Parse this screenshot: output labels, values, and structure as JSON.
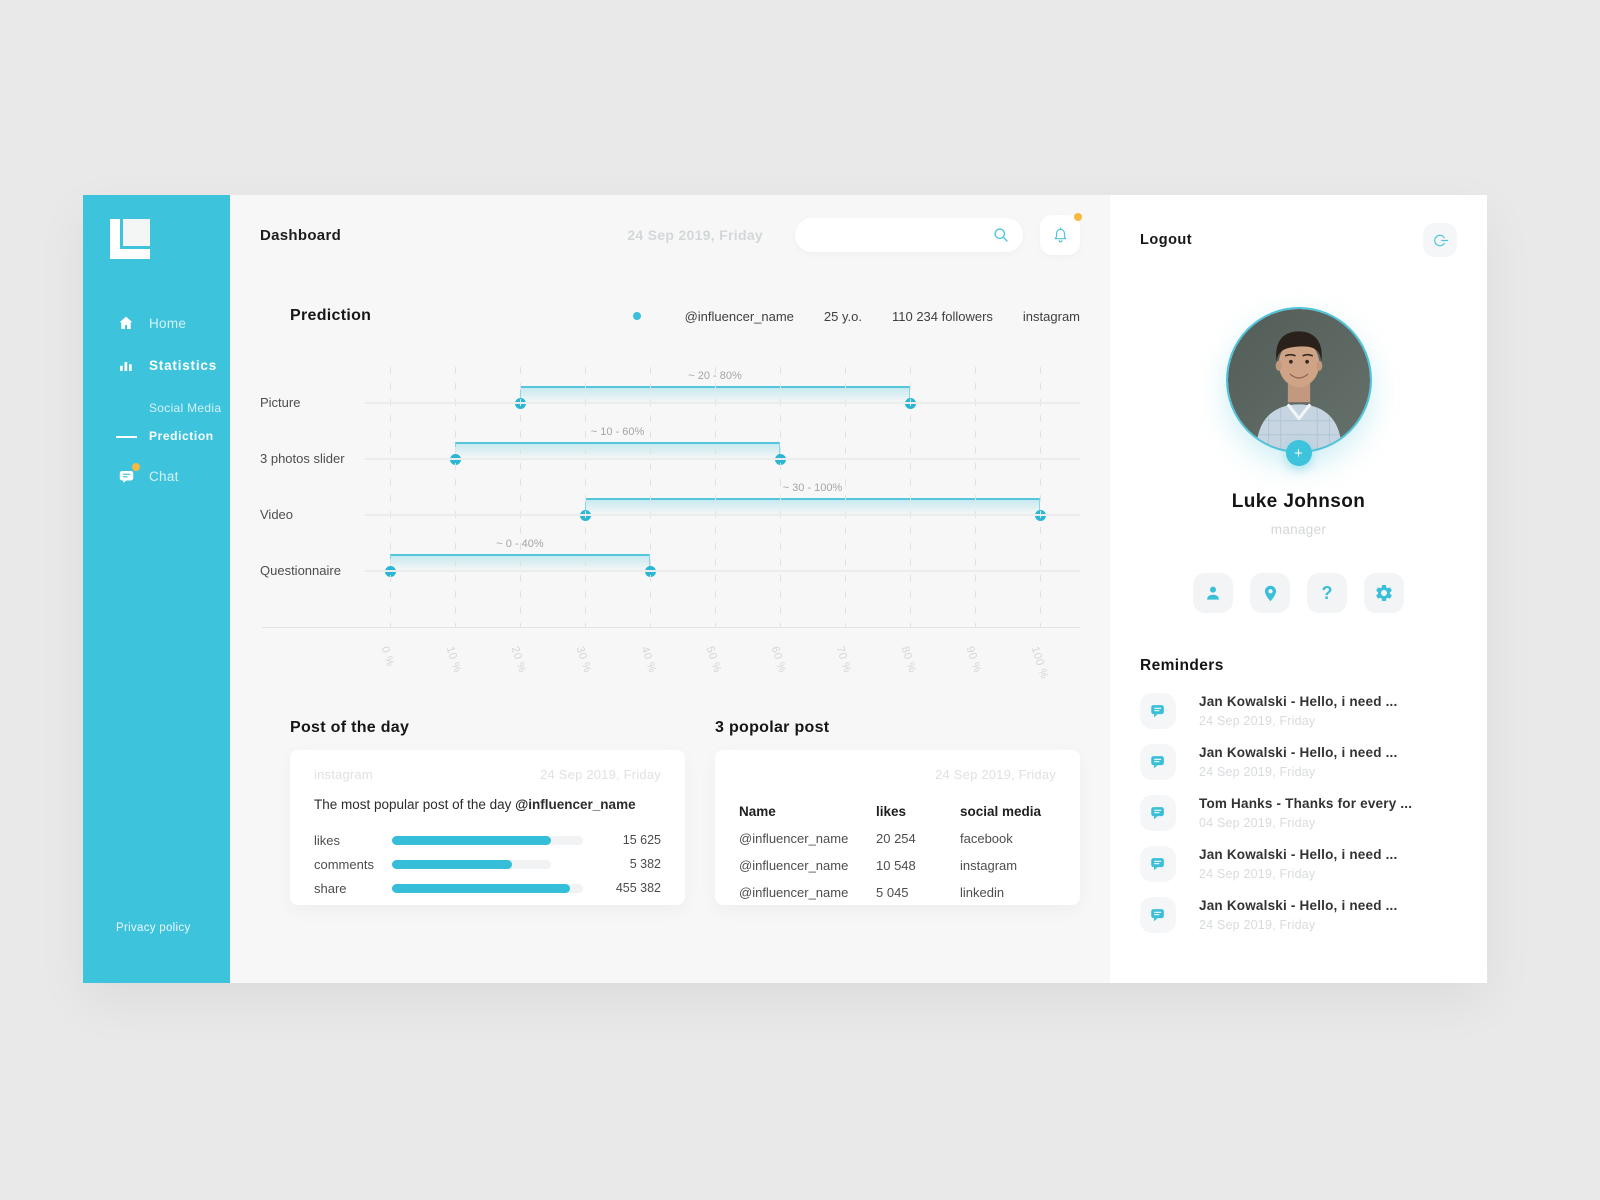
{
  "colors": {
    "accent": "#3BBFD9",
    "sidebar": "#3EC3DC",
    "badge_orange": "#F6BA3F",
    "muted_text": "#D8DBDD",
    "main_bg": "#F7F7F7"
  },
  "header": {
    "title": "Dashboard",
    "date": "24 Sep 2019, Friday"
  },
  "sidebar": {
    "items": {
      "home": "Home",
      "statistics": "Statistics",
      "social_media": "Social Media",
      "prediction": "Prediction",
      "chat": "Chat"
    },
    "privacy": "Privacy policy"
  },
  "prediction": {
    "title": "Prediction",
    "legend": {
      "handle": "@influencer_name",
      "age": "25 y.o.",
      "followers": "110 234 followers",
      "network": "instagram"
    }
  },
  "chart_data": {
    "type": "bar",
    "orientation": "horizontal-range",
    "title": "Prediction",
    "xlabel": "%",
    "xlim": [
      0,
      100
    ],
    "grid": true,
    "x_ticks": [
      "0 %",
      "10 %",
      "20 %",
      "30 %",
      "40 %",
      "50 %",
      "60 %",
      "70 %",
      "80 %",
      "90 %",
      "100 %"
    ],
    "bars": [
      {
        "category": "Picture",
        "range": [
          20,
          80
        ],
        "annotation": "~ 20 - 80%"
      },
      {
        "category": "3 photos slider",
        "range": [
          10,
          60
        ],
        "annotation": "~ 10 - 60%"
      },
      {
        "category": "Video",
        "range": [
          30,
          100
        ],
        "annotation": "~ 30 - 100%"
      },
      {
        "category": "Questionnaire",
        "range": [
          0,
          40
        ],
        "annotation": "~ 0 - 40%"
      }
    ]
  },
  "post_of_day": {
    "title": "Post of the day",
    "network": "instagram",
    "date": "24 Sep 2019, Friday",
    "text_prefix": "The most popular post of the day ",
    "influencer": "@influencer_name",
    "stats": [
      {
        "label": "likes",
        "value": "15 625",
        "fill_pct": 83,
        "track_pct": 100
      },
      {
        "label": "comments",
        "value": "5 382",
        "fill_pct": 63,
        "track_pct": 83
      },
      {
        "label": "share",
        "value": "455 382",
        "fill_pct": 93,
        "track_pct": 100
      }
    ]
  },
  "popular_posts": {
    "title": "3 popolar post",
    "date": "24 Sep 2019, Friday",
    "columns": [
      "Name",
      "likes",
      "social media"
    ],
    "rows": [
      {
        "name": "@influencer_name",
        "likes": "20 254",
        "media": "facebook"
      },
      {
        "name": "@influencer_name",
        "likes": "10 548",
        "media": "instagram"
      },
      {
        "name": "@influencer_name",
        "likes": "5 045",
        "media": "linkedin"
      }
    ]
  },
  "profile": {
    "logout_label": "Logout",
    "name": "Luke Johnson",
    "role": "manager"
  },
  "reminders": {
    "title": "Reminders",
    "items": [
      {
        "title": "Jan Kowalski - Hello, i need ...",
        "date": "24 Sep 2019, Friday"
      },
      {
        "title": "Jan Kowalski - Hello, i need ...",
        "date": "24 Sep 2019, Friday"
      },
      {
        "title": "Tom Hanks - Thanks for every ...",
        "date": "04 Sep 2019, Friday"
      },
      {
        "title": "Jan Kowalski - Hello, i need ...",
        "date": "24 Sep 2019, Friday"
      },
      {
        "title": "Jan Kowalski - Hello, i need ...",
        "date": "24 Sep 2019, Friday"
      }
    ]
  }
}
